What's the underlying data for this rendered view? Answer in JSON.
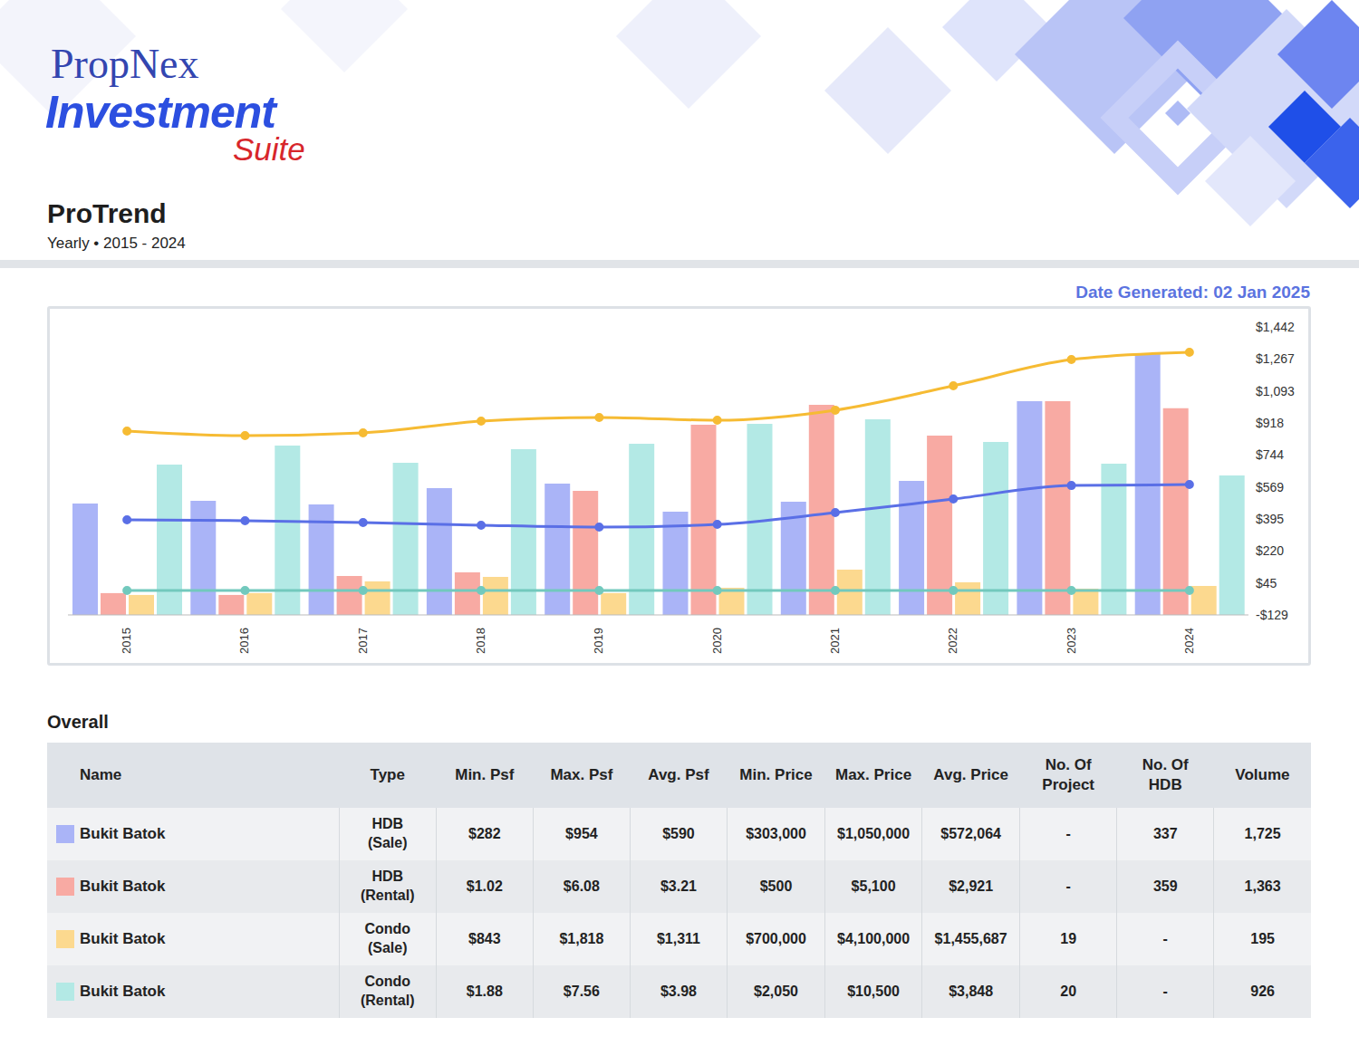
{
  "header": {
    "brand": "PropNex",
    "product": "Investment",
    "product_suffix": "Suite",
    "title": "ProTrend",
    "subtitle": "Yearly • 2015 - 2024",
    "date_generated": "Date Generated: 02 Jan 2025"
  },
  "chart_data": {
    "type": "bar",
    "categories": [
      "2015",
      "2016",
      "2017",
      "2018",
      "2019",
      "2020",
      "2021",
      "2022",
      "2023",
      "2024"
    ],
    "series": [
      {
        "type": "bar",
        "color": "#aab4f7",
        "values": [
          479,
          494,
          474,
          563,
          587,
          434,
          489,
          602,
          1037,
          1299
        ]
      },
      {
        "type": "bar",
        "color": "#f8aaa3",
        "values": [
          -10,
          -20,
          84,
          103,
          548,
          908,
          1017,
          849,
          1037,
          998
        ]
      },
      {
        "type": "bar",
        "color": "#fcd98f",
        "values": [
          -20,
          -10,
          54,
          79,
          -10,
          19,
          118,
          49,
          14,
          29
        ]
      },
      {
        "type": "bar",
        "color": "#b3e9e5",
        "values": [
          691,
          795,
          701,
          775,
          805,
          913,
          938,
          815,
          696,
          632
        ]
      },
      {
        "type": "line",
        "color": "#f6bb33",
        "marker": "circle",
        "values": [
          874,
          849,
          864,
          928,
          948,
          933,
          988,
          1121,
          1264,
          1304
        ]
      },
      {
        "type": "line",
        "color": "#5a6fe6",
        "marker": "circle",
        "values": [
          390,
          385,
          375,
          360,
          350,
          365,
          429,
          503,
          577,
          582
        ]
      },
      {
        "type": "line",
        "color": "#72c9bd",
        "marker": "circle",
        "values": [
          4,
          4,
          4,
          4,
          4,
          4,
          4,
          4,
          4,
          4
        ]
      }
    ],
    "ylim": [
      -129,
      1442
    ],
    "yticks": [
      {
        "value": -129,
        "label": "-$129"
      },
      {
        "value": 45,
        "label": "$45"
      },
      {
        "value": 220,
        "label": "$220"
      },
      {
        "value": 395,
        "label": "$395"
      },
      {
        "value": 569,
        "label": "$569"
      },
      {
        "value": 744,
        "label": "$744"
      },
      {
        "value": 918,
        "label": "$918"
      },
      {
        "value": 1093,
        "label": "$1,093"
      },
      {
        "value": 1267,
        "label": "$1,267"
      },
      {
        "value": 1442,
        "label": "$1,442"
      }
    ],
    "grid": false
  },
  "table": {
    "title": "Overall",
    "columns": [
      "Name",
      "Type",
      "Min. Psf",
      "Max. Psf",
      "Avg. Psf",
      "Min. Price",
      "Max. Price",
      "Avg. Price",
      "No. Of Project",
      "No. Of HDB",
      "Volume"
    ],
    "rows": [
      [
        "Bukit Batok",
        "HDB (Sale)",
        "$282",
        "$954",
        "$590",
        "$303,000",
        "$1,050,000",
        "$572,064",
        "-",
        "337",
        "1,725"
      ],
      [
        "Bukit Batok",
        "HDB (Rental)",
        "$1.02",
        "$6.08",
        "$3.21",
        "$500",
        "$5,100",
        "$2,921",
        "-",
        "359",
        "1,363"
      ],
      [
        "Bukit Batok",
        "Condo (Sale)",
        "$843",
        "$1,818",
        "$1,311",
        "$700,000",
        "$4,100,000",
        "$1,455,687",
        "19",
        "-",
        "195"
      ],
      [
        "Bukit Batok",
        "Condo (Rental)",
        "$1.88",
        "$7.56",
        "$3.98",
        "$2,050",
        "$10,500",
        "$3,848",
        "20",
        "-",
        "926"
      ]
    ]
  }
}
